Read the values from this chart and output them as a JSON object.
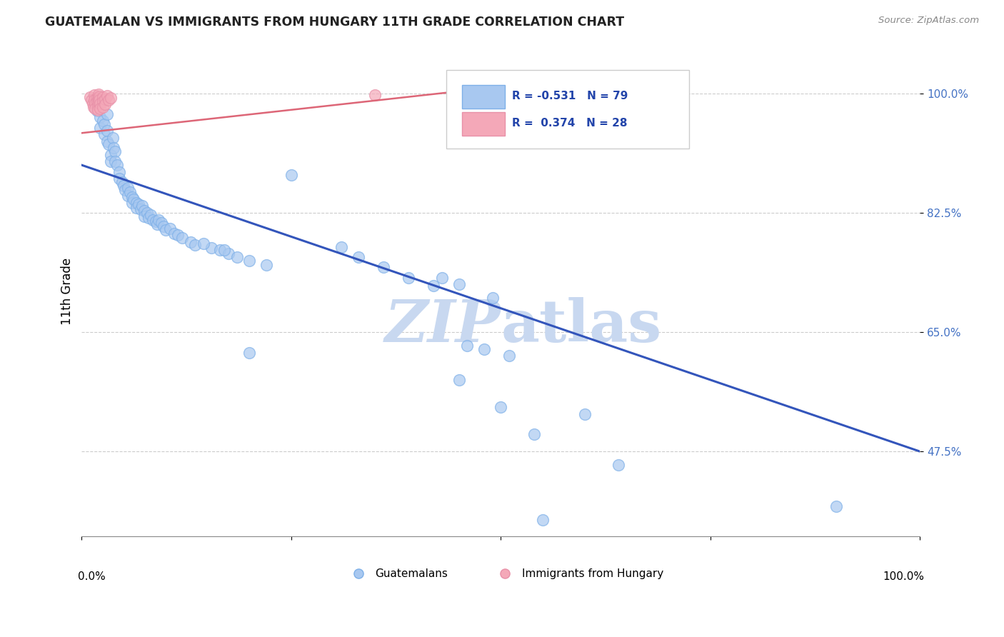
{
  "title": "GUATEMALAN VS IMMIGRANTS FROM HUNGARY 11TH GRADE CORRELATION CHART",
  "source_text": "Source: ZipAtlas.com",
  "ylabel": "11th Grade",
  "ytick_values": [
    1.0,
    0.825,
    0.65,
    0.475
  ],
  "ytick_labels": [
    "100.0%",
    "82.5%",
    "65.0%",
    "47.5%"
  ],
  "xlim": [
    0.0,
    1.0
  ],
  "ylim": [
    0.35,
    1.07
  ],
  "legend_blue_r": "-0.531",
  "legend_blue_n": "79",
  "legend_pink_r": "0.374",
  "legend_pink_n": "28",
  "blue_color": "#A8C8F0",
  "pink_color": "#F4A8B8",
  "blue_edge_color": "#7EB0E8",
  "pink_edge_color": "#E890A8",
  "blue_line_color": "#3355BB",
  "pink_line_color": "#DD6677",
  "watermark_color": "#C8D8F0",
  "blue_line_x": [
    0.0,
    1.0
  ],
  "blue_line_y": [
    0.895,
    0.475
  ],
  "pink_line_x": [
    0.0,
    0.5
  ],
  "pink_line_y": [
    0.942,
    1.01
  ],
  "blue_scatter": [
    [
      0.018,
      0.975
    ],
    [
      0.022,
      0.965
    ],
    [
      0.022,
      0.95
    ],
    [
      0.025,
      0.96
    ],
    [
      0.027,
      0.94
    ],
    [
      0.027,
      0.955
    ],
    [
      0.03,
      0.97
    ],
    [
      0.03,
      0.945
    ],
    [
      0.03,
      0.93
    ],
    [
      0.032,
      0.925
    ],
    [
      0.035,
      0.91
    ],
    [
      0.035,
      0.9
    ],
    [
      0.037,
      0.935
    ],
    [
      0.038,
      0.92
    ],
    [
      0.04,
      0.915
    ],
    [
      0.04,
      0.9
    ],
    [
      0.042,
      0.895
    ],
    [
      0.045,
      0.885
    ],
    [
      0.045,
      0.875
    ],
    [
      0.048,
      0.87
    ],
    [
      0.05,
      0.865
    ],
    [
      0.052,
      0.858
    ],
    [
      0.055,
      0.862
    ],
    [
      0.055,
      0.85
    ],
    [
      0.058,
      0.855
    ],
    [
      0.06,
      0.848
    ],
    [
      0.06,
      0.84
    ],
    [
      0.062,
      0.845
    ],
    [
      0.065,
      0.84
    ],
    [
      0.065,
      0.832
    ],
    [
      0.068,
      0.838
    ],
    [
      0.07,
      0.83
    ],
    [
      0.072,
      0.835
    ],
    [
      0.075,
      0.828
    ],
    [
      0.075,
      0.82
    ],
    [
      0.078,
      0.825
    ],
    [
      0.08,
      0.818
    ],
    [
      0.082,
      0.822
    ],
    [
      0.085,
      0.815
    ],
    [
      0.088,
      0.812
    ],
    [
      0.09,
      0.808
    ],
    [
      0.092,
      0.815
    ],
    [
      0.095,
      0.81
    ],
    [
      0.098,
      0.805
    ],
    [
      0.1,
      0.8
    ],
    [
      0.105,
      0.802
    ],
    [
      0.11,
      0.795
    ],
    [
      0.115,
      0.792
    ],
    [
      0.12,
      0.788
    ],
    [
      0.13,
      0.782
    ],
    [
      0.135,
      0.778
    ],
    [
      0.155,
      0.774
    ],
    [
      0.165,
      0.77
    ],
    [
      0.175,
      0.765
    ],
    [
      0.185,
      0.76
    ],
    [
      0.2,
      0.755
    ],
    [
      0.17,
      0.77
    ],
    [
      0.22,
      0.748
    ],
    [
      0.25,
      0.88
    ],
    [
      0.31,
      0.775
    ],
    [
      0.33,
      0.76
    ],
    [
      0.36,
      0.745
    ],
    [
      0.39,
      0.73
    ],
    [
      0.42,
      0.718
    ],
    [
      0.43,
      0.73
    ],
    [
      0.45,
      0.72
    ],
    [
      0.46,
      0.63
    ],
    [
      0.48,
      0.625
    ],
    [
      0.49,
      0.7
    ],
    [
      0.51,
      0.615
    ],
    [
      0.45,
      0.58
    ],
    [
      0.5,
      0.54
    ],
    [
      0.6,
      0.53
    ],
    [
      0.54,
      0.5
    ],
    [
      0.64,
      0.455
    ],
    [
      0.55,
      0.375
    ],
    [
      0.9,
      0.395
    ],
    [
      0.2,
      0.62
    ],
    [
      0.145,
      0.78
    ]
  ],
  "pink_scatter": [
    [
      0.01,
      0.995
    ],
    [
      0.012,
      0.99
    ],
    [
      0.013,
      0.985
    ],
    [
      0.014,
      0.98
    ],
    [
      0.015,
      0.998
    ],
    [
      0.015,
      0.99
    ],
    [
      0.016,
      0.985
    ],
    [
      0.016,
      0.978
    ],
    [
      0.018,
      0.994
    ],
    [
      0.018,
      0.988
    ],
    [
      0.019,
      0.982
    ],
    [
      0.019,
      0.976
    ],
    [
      0.02,
      0.999
    ],
    [
      0.02,
      0.993
    ],
    [
      0.02,
      0.987
    ],
    [
      0.021,
      0.996
    ],
    [
      0.021,
      0.99
    ],
    [
      0.022,
      0.985
    ],
    [
      0.022,
      0.978
    ],
    [
      0.025,
      0.995
    ],
    [
      0.025,
      0.988
    ],
    [
      0.025,
      0.98
    ],
    [
      0.028,
      0.992
    ],
    [
      0.028,
      0.984
    ],
    [
      0.03,
      0.997
    ],
    [
      0.032,
      0.99
    ],
    [
      0.035,
      0.994
    ],
    [
      0.35,
      0.998
    ]
  ]
}
